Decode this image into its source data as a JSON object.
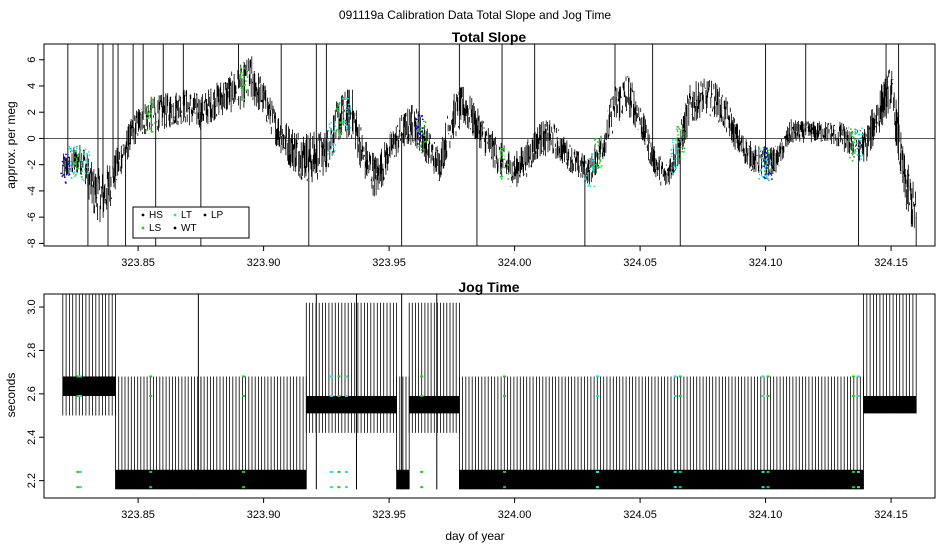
{
  "figure": {
    "suptitle": "091119a   Calibration Data Total Slope and Jog Time",
    "xlabel": "day of year"
  },
  "colors": {
    "HS": "#000000",
    "LS": "#22cc22",
    "LT": "#22dddd",
    "WT": "#000000",
    "LP": "#000000",
    "blue_marks": "#0000cc",
    "main_trace": "#000000"
  },
  "chart_data": [
    {
      "type": "line",
      "title": "Total Slope",
      "xlabel": "",
      "ylabel": "approx. per meg",
      "xlim": [
        323.8125,
        324.1675
      ],
      "ylim": [
        -8.2,
        7.2
      ],
      "xticks": [
        323.85,
        323.9,
        323.95,
        324.0,
        324.05,
        324.1,
        324.15
      ],
      "xtick_labels": [
        "323.85",
        "323.90",
        "323.95",
        "324.00",
        "324.05",
        "324.10",
        "324.15"
      ],
      "yticks": [
        -8,
        -6,
        -4,
        -2,
        0,
        2,
        4,
        6
      ],
      "ytick_labels": [
        "-8",
        "-6",
        "-4",
        "-2",
        "0",
        "2",
        "4",
        "6"
      ],
      "hline": 0,
      "x_range": [
        323.82,
        324.16
      ],
      "envelope": {
        "x": [
          323.82,
          323.824,
          323.828,
          323.832,
          323.836,
          323.84,
          323.844,
          323.85,
          323.855,
          323.86,
          323.868,
          323.875,
          323.882,
          323.89,
          323.895,
          323.9,
          323.905,
          323.91,
          323.915,
          323.92,
          323.925,
          323.93,
          323.935,
          323.94,
          323.945,
          323.95,
          323.955,
          323.96,
          323.965,
          323.97,
          323.975,
          323.98,
          323.985,
          323.99,
          323.995,
          324.0,
          324.005,
          324.01,
          324.015,
          324.02,
          324.025,
          324.03,
          324.035,
          324.04,
          324.045,
          324.05,
          324.055,
          324.06,
          324.065,
          324.07,
          324.075,
          324.08,
          324.085,
          324.09,
          324.095,
          324.1,
          324.105,
          324.11,
          324.115,
          324.12,
          324.125,
          324.13,
          324.135,
          324.14,
          324.145,
          324.15,
          324.155,
          324.16
        ],
        "center": [
          -2.3,
          -1.8,
          -1.5,
          -4.0,
          -4.5,
          -3.0,
          -1.0,
          1.2,
          1.8,
          2.0,
          2.5,
          2.0,
          3.0,
          3.8,
          4.5,
          3.0,
          0.8,
          -0.5,
          -1.2,
          -1.5,
          -1.0,
          1.5,
          2.0,
          -1.5,
          -3.0,
          -1.0,
          0.5,
          1.2,
          -0.5,
          -2.0,
          1.5,
          2.5,
          1.0,
          -0.5,
          -1.8,
          -2.5,
          -1.5,
          0.0,
          0.0,
          -1.0,
          -2.0,
          -2.5,
          -0.5,
          2.5,
          3.5,
          1.5,
          -1.5,
          -3.0,
          -1.0,
          2.5,
          3.2,
          3.0,
          1.5,
          -0.5,
          -1.5,
          -2.0,
          -1.5,
          0.5,
          0.5,
          0.5,
          0.5,
          0.2,
          -0.5,
          -0.5,
          2.0,
          4.0,
          -3.0,
          -6.0
        ],
        "spread": [
          0.8,
          0.8,
          0.9,
          1.4,
          1.5,
          1.2,
          1.0,
          0.9,
          1.0,
          1.0,
          1.0,
          1.0,
          1.0,
          1.2,
          1.4,
          1.0,
          1.0,
          1.2,
          1.4,
          1.5,
          1.2,
          1.3,
          1.5,
          1.2,
          1.3,
          1.0,
          1.0,
          1.2,
          1.0,
          1.0,
          1.3,
          1.2,
          1.0,
          1.0,
          1.0,
          1.0,
          1.0,
          1.0,
          1.0,
          0.8,
          0.8,
          0.8,
          1.0,
          1.2,
          1.2,
          1.0,
          0.8,
          0.8,
          1.0,
          1.2,
          1.0,
          1.0,
          1.0,
          0.8,
          0.8,
          0.9,
          0.7,
          0.7,
          0.6,
          0.6,
          0.6,
          0.8,
          0.8,
          1.0,
          1.3,
          1.2,
          1.5,
          1.5
        ]
      },
      "spikes": [
        323.822,
        323.83,
        323.834,
        323.836,
        323.838,
        323.84,
        323.842,
        323.845,
        323.848,
        323.852,
        323.857,
        323.86,
        323.868,
        323.875,
        323.89,
        323.907,
        323.918,
        323.921,
        323.925,
        323.955,
        323.962,
        323.978,
        323.985,
        323.995,
        324.008,
        324.028,
        324.04,
        324.055,
        324.066,
        324.1,
        324.116,
        324.137,
        324.148,
        324.153,
        324.16
      ],
      "markers": [
        {
          "name": "LS",
          "x": [
            323.826,
            323.855,
            323.892,
            323.93,
            323.963,
            323.996,
            324.033,
            324.066,
            324.101,
            324.135
          ]
        },
        {
          "name": "LT",
          "x": [
            323.824,
            323.829,
            323.927,
            323.933,
            324.03,
            324.064,
            324.099,
            324.137
          ]
        },
        {
          "name": "HS",
          "x": [
            323.821,
            323.962,
            324.101
          ]
        }
      ],
      "legend": {
        "placement": "bottom-left",
        "entries": [
          "HS",
          "LT",
          "LP",
          "LS",
          "WT"
        ]
      }
    },
    {
      "type": "line",
      "title": "Jog Time",
      "xlabel": "day of year",
      "ylabel": "seconds",
      "xlim": [
        323.8125,
        324.1675
      ],
      "ylim": [
        2.12,
        3.06
      ],
      "xticks": [
        323.85,
        323.9,
        323.95,
        324.0,
        324.05,
        324.1,
        324.15
      ],
      "xtick_labels": [
        "323.85",
        "323.90",
        "323.95",
        "324.00",
        "324.05",
        "324.10",
        "324.15"
      ],
      "yticks": [
        2.2,
        2.4,
        2.6,
        2.8,
        3.0
      ],
      "ytick_labels": [
        "2.2",
        "2.4",
        "2.6",
        "2.8",
        "3.0"
      ],
      "segments": [
        {
          "x": [
            323.82,
            323.841
          ],
          "low": 2.59,
          "high": 2.68,
          "spike_min": 2.5,
          "spike_max": 3.06
        },
        {
          "x": [
            323.841,
            323.875
          ],
          "low": 2.16,
          "high": 2.25,
          "spike_min": 2.16,
          "spike_max": 2.68
        },
        {
          "x": [
            323.875,
            323.917
          ],
          "low": 2.16,
          "high": 2.25,
          "spike_min": 2.16,
          "spike_max": 2.68
        },
        {
          "x": [
            323.917,
            323.953
          ],
          "low": 2.51,
          "high": 2.59,
          "spike_min": 2.42,
          "spike_max": 3.02
        },
        {
          "x": [
            323.953,
            323.958
          ],
          "low": 2.16,
          "high": 2.25,
          "spike_min": 2.16,
          "spike_max": 2.68
        },
        {
          "x": [
            323.958,
            323.978
          ],
          "low": 2.51,
          "high": 2.59,
          "spike_min": 2.42,
          "spike_max": 3.02
        },
        {
          "x": [
            323.978,
            324.139
          ],
          "low": 2.16,
          "high": 2.25,
          "spike_min": 2.16,
          "spike_max": 2.68
        },
        {
          "x": [
            324.139,
            324.16
          ],
          "low": 2.51,
          "high": 2.59,
          "spike_min": 2.51,
          "spike_max": 3.06
        }
      ],
      "markers": [
        {
          "name": "LS",
          "x": [
            323.826,
            323.855,
            323.892,
            323.93,
            323.963,
            323.996,
            324.033,
            324.066,
            324.101,
            324.135
          ]
        },
        {
          "name": "LT",
          "x": [
            323.827,
            323.927,
            323.933,
            324.033,
            324.064,
            324.099,
            324.137
          ]
        }
      ]
    }
  ]
}
